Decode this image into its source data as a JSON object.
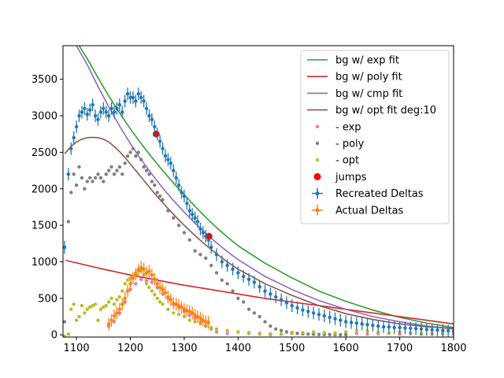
{
  "chart_data": {
    "type": "scatter",
    "title": "",
    "xlabel": "",
    "ylabel": "",
    "xlim": [
      1075,
      1800
    ],
    "ylim": [
      -30,
      3960
    ],
    "x_ticks": [
      1100,
      1200,
      1300,
      1400,
      1500,
      1600,
      1700,
      1800
    ],
    "y_ticks": [
      0,
      500,
      1000,
      1500,
      2000,
      2500,
      3000,
      3500
    ],
    "grid": false,
    "legend_placement": "top-right",
    "colors": {
      "exp_fit": "#2ca02c",
      "poly_fit": "#d62728",
      "cmp_fit": "#9467bd",
      "opt_fit": "#8c564b",
      "minus_exp": "#e377c2",
      "minus_poly": "#7f7f7f",
      "minus_opt": "#bcbd22",
      "jumps": "#ff0000",
      "recreated": "#1f77b4",
      "actual": "#ff7f0e"
    },
    "legend": [
      {
        "label": "bg w/ exp fit",
        "kind": "line",
        "color": "#2ca02c"
      },
      {
        "label": "bg w/ poly fit",
        "kind": "line",
        "color": "#d62728"
      },
      {
        "label": "bg w/ cmp fit",
        "kind": "line",
        "color": "#9467bd"
      },
      {
        "label": "bg w/ opt fit deg:10",
        "kind": "line",
        "color": "#8c564b"
      },
      {
        "label": "- exp",
        "kind": "point",
        "color": "#e377c2"
      },
      {
        "label": "- poly",
        "kind": "point",
        "color": "#7f7f7f"
      },
      {
        "label": "- opt",
        "kind": "point",
        "color": "#bcbd22"
      },
      {
        "label": "jumps",
        "kind": "bigpoint",
        "color": "#ff0000"
      },
      {
        "label": "Recreated Deltas",
        "kind": "errorbar",
        "color": "#1f77b4"
      },
      {
        "label": "Actual Deltas",
        "kind": "errorbar",
        "color": "#ff7f0e"
      }
    ],
    "fit_lines": [
      {
        "name": "bg w/ exp fit",
        "color": "#2ca02c",
        "x": [
          1105,
          1120,
          1140,
          1160,
          1180,
          1200,
          1220,
          1240,
          1260,
          1280,
          1300,
          1320,
          1340,
          1360,
          1380,
          1400,
          1450,
          1500,
          1550,
          1600,
          1650,
          1700,
          1750,
          1800
        ],
        "y": [
          3960,
          3780,
          3520,
          3270,
          3040,
          2820,
          2620,
          2430,
          2250,
          2080,
          1920,
          1760,
          1610,
          1470,
          1340,
          1220,
          980,
          780,
          600,
          460,
          340,
          240,
          160,
          100
        ]
      },
      {
        "name": "bg w/ poly fit",
        "color": "#d62728",
        "x": [
          1080,
          1150,
          1200,
          1250,
          1300,
          1350,
          1400,
          1450,
          1500,
          1550,
          1600,
          1650,
          1700,
          1750,
          1800
        ],
        "y": [
          1020,
          900,
          820,
          750,
          680,
          620,
          560,
          500,
          450,
          400,
          350,
          300,
          250,
          200,
          150
        ]
      },
      {
        "name": "bg w/ cmp fit",
        "color": "#9467bd",
        "x": [
          1100,
          1120,
          1140,
          1160,
          1180,
          1200,
          1220,
          1240,
          1260,
          1280,
          1300,
          1320,
          1340,
          1360,
          1380,
          1400,
          1450,
          1500,
          1550,
          1600,
          1650,
          1700,
          1750,
          1800
        ],
        "y": [
          3960,
          3700,
          3400,
          3120,
          2860,
          2620,
          2400,
          2200,
          2010,
          1840,
          1680,
          1530,
          1390,
          1260,
          1140,
          1030,
          800,
          620,
          470,
          350,
          250,
          180,
          120,
          80
        ]
      },
      {
        "name": "bg w/ opt fit deg:10",
        "color": "#8c564b",
        "x": [
          1078,
          1090,
          1100,
          1110,
          1120,
          1130,
          1140,
          1150,
          1160,
          1170,
          1180,
          1190,
          1200,
          1220,
          1240,
          1260,
          1280,
          1300,
          1320,
          1340,
          1360,
          1380,
          1400,
          1450,
          1500,
          1550,
          1600,
          1650,
          1700,
          1750,
          1800
        ],
        "y": [
          2480,
          2580,
          2640,
          2680,
          2700,
          2705,
          2700,
          2680,
          2640,
          2580,
          2510,
          2430,
          2340,
          2160,
          1980,
          1810,
          1650,
          1500,
          1360,
          1230,
          1110,
          1000,
          900,
          700,
          540,
          400,
          290,
          210,
          150,
          110,
          90
        ]
      }
    ],
    "series": [
      {
        "name": "Recreated Deltas",
        "color": "#1f77b4",
        "x": [
          1078,
          1085,
          1090,
          1095,
          1100,
          1105,
          1110,
          1115,
          1120,
          1125,
          1130,
          1135,
          1140,
          1145,
          1150,
          1155,
          1160,
          1165,
          1170,
          1175,
          1180,
          1185,
          1190,
          1195,
          1200,
          1205,
          1210,
          1215,
          1220,
          1225,
          1230,
          1235,
          1240,
          1245,
          1250,
          1255,
          1260,
          1265,
          1270,
          1275,
          1280,
          1285,
          1290,
          1295,
          1300,
          1305,
          1310,
          1315,
          1320,
          1325,
          1330,
          1335,
          1340,
          1345,
          1350,
          1360,
          1370,
          1380,
          1390,
          1400,
          1410,
          1420,
          1430,
          1440,
          1450,
          1460,
          1470,
          1480,
          1490,
          1500,
          1510,
          1520,
          1530,
          1540,
          1550,
          1560,
          1570,
          1580,
          1590,
          1600,
          1610,
          1620,
          1630,
          1640,
          1650,
          1660,
          1670,
          1680,
          1690,
          1700,
          1710,
          1720,
          1730,
          1740,
          1750,
          1760,
          1770,
          1780,
          1790,
          1800
        ],
        "y": [
          1200,
          2200,
          2550,
          2700,
          2850,
          3000,
          3050,
          3100,
          3020,
          3080,
          3150,
          3000,
          2950,
          3050,
          3100,
          3050,
          3000,
          3100,
          3050,
          3100,
          3150,
          3050,
          3200,
          3300,
          3250,
          3250,
          3200,
          3300,
          3250,
          3200,
          3100,
          3000,
          2950,
          2850,
          2750,
          2650,
          2550,
          2450,
          2400,
          2350,
          2250,
          2150,
          2050,
          1950,
          1900,
          1800,
          1700,
          1650,
          1600,
          1550,
          1450,
          1400,
          1350,
          1300,
          1200,
          1100,
          1000,
          950,
          900,
          850,
          800,
          760,
          720,
          660,
          600,
          560,
          520,
          480,
          440,
          400,
          370,
          340,
          320,
          300,
          280,
          260,
          240,
          220,
          200,
          180,
          170,
          160,
          150,
          140,
          130,
          120,
          110,
          110,
          100,
          100,
          95,
          90,
          85,
          80,
          75,
          70,
          65,
          60,
          55,
          50
        ]
      },
      {
        "name": "Actual Deltas",
        "color": "#ff7f0e",
        "x": [
          1160,
          1165,
          1170,
          1175,
          1180,
          1185,
          1190,
          1195,
          1200,
          1205,
          1210,
          1215,
          1220,
          1225,
          1230,
          1235,
          1240,
          1245,
          1250,
          1255,
          1260,
          1265,
          1270,
          1275,
          1280,
          1285,
          1290,
          1295,
          1300,
          1305,
          1310,
          1315,
          1320,
          1325,
          1330,
          1335,
          1340,
          1345
        ],
        "y": [
          150,
          200,
          260,
          300,
          350,
          420,
          500,
          600,
          700,
          780,
          830,
          880,
          920,
          900,
          850,
          870,
          820,
          760,
          700,
          650,
          620,
          580,
          520,
          480,
          430,
          420,
          400,
          380,
          350,
          330,
          320,
          300,
          270,
          250,
          230,
          200,
          180,
          170
        ]
      },
      {
        "name": "- exp",
        "color": "#e377c2",
        "x": [
          1160,
          1170,
          1180,
          1190,
          1200,
          1210,
          1220,
          1230,
          1240,
          1250,
          1260,
          1270,
          1280,
          1290,
          1300,
          1310,
          1320,
          1330,
          1340,
          1350,
          1360,
          1380,
          1400,
          1420,
          1440,
          1460,
          1480,
          1500,
          1520,
          1540,
          1560,
          1580,
          1600,
          1620,
          1640,
          1660,
          1680,
          1700,
          1720,
          1740,
          1760,
          1780,
          1800
        ],
        "y": [
          120,
          180,
          300,
          450,
          620,
          700,
          760,
          740,
          720,
          650,
          560,
          500,
          420,
          380,
          320,
          270,
          230,
          180,
          130,
          80,
          40,
          20,
          40,
          30,
          20,
          15,
          10,
          20,
          15,
          10,
          20,
          25,
          15,
          20,
          10,
          15,
          20,
          10,
          15,
          10,
          20,
          15,
          10
        ]
      },
      {
        "name": "- poly",
        "color": "#7f7f7f",
        "x": [
          1078,
          1085,
          1090,
          1095,
          1100,
          1105,
          1110,
          1115,
          1120,
          1125,
          1130,
          1135,
          1140,
          1145,
          1150,
          1155,
          1160,
          1165,
          1170,
          1175,
          1180,
          1185,
          1190,
          1195,
          1200,
          1205,
          1210,
          1215,
          1220,
          1225,
          1230,
          1235,
          1240,
          1245,
          1250,
          1255,
          1260,
          1270,
          1280,
          1290,
          1300,
          1310,
          1320,
          1330,
          1340,
          1350,
          1360,
          1370,
          1380,
          1390,
          1400,
          1410,
          1420,
          1430,
          1440,
          1450,
          1460,
          1470,
          1480,
          1490,
          1500,
          1510,
          1520,
          1530,
          1540,
          1550,
          1560,
          1570,
          1580,
          1590,
          1600
        ],
        "y": [
          180,
          1550,
          1950,
          2200,
          2050,
          2300,
          2150,
          2000,
          2100,
          2150,
          2100,
          2150,
          2200,
          2150,
          2100,
          2200,
          2250,
          2300,
          2200,
          2250,
          2300,
          2200,
          2350,
          2450,
          2500,
          2550,
          2450,
          2500,
          2400,
          2300,
          2250,
          2200,
          2100,
          2050,
          1950,
          1900,
          1850,
          1700,
          1600,
          1500,
          1400,
          1300,
          1150,
          1100,
          1050,
          950,
          850,
          750,
          700,
          600,
          500,
          450,
          350,
          300,
          250,
          180,
          120,
          80,
          60,
          40,
          30,
          20,
          15,
          10,
          8,
          6,
          5,
          4,
          3,
          2,
          2
        ]
      },
      {
        "name": "- opt",
        "color": "#bcbd22",
        "x": [
          1078,
          1085,
          1090,
          1095,
          1100,
          1105,
          1110,
          1115,
          1120,
          1125,
          1130,
          1135,
          1140,
          1145,
          1150,
          1155,
          1160,
          1165,
          1170,
          1175,
          1180,
          1185,
          1190,
          1195,
          1200,
          1205,
          1210,
          1215,
          1220,
          1225,
          1230,
          1235,
          1240,
          1245,
          1250,
          1255,
          1260,
          1270,
          1280,
          1290,
          1300,
          1310,
          1320,
          1330,
          1340,
          1350,
          1360,
          1380,
          1400,
          1420,
          1440,
          1460,
          1480,
          1500,
          1520,
          1540,
          1560,
          1580,
          1600,
          1620,
          1640,
          1660,
          1680,
          1700,
          1720,
          1740,
          1760,
          1780,
          1800
        ],
        "y": [
          -20,
          10,
          350,
          420,
          200,
          250,
          400,
          300,
          350,
          380,
          400,
          420,
          200,
          350,
          380,
          400,
          450,
          500,
          420,
          480,
          520,
          600,
          700,
          750,
          780,
          800,
          850,
          900,
          880,
          820,
          700,
          650,
          600,
          550,
          500,
          450,
          420,
          350,
          300,
          280,
          250,
          200,
          180,
          150,
          120,
          100,
          80,
          60,
          40,
          20,
          10,
          0,
          10,
          20,
          30,
          40,
          30,
          20,
          40,
          60,
          50,
          30,
          20,
          40,
          30,
          20,
          10,
          20,
          30
        ]
      }
    ],
    "jumps": {
      "name": "jumps",
      "color": "#ff0000",
      "x": [
        1248,
        1346
      ],
      "y": [
        2750,
        1350
      ]
    }
  }
}
